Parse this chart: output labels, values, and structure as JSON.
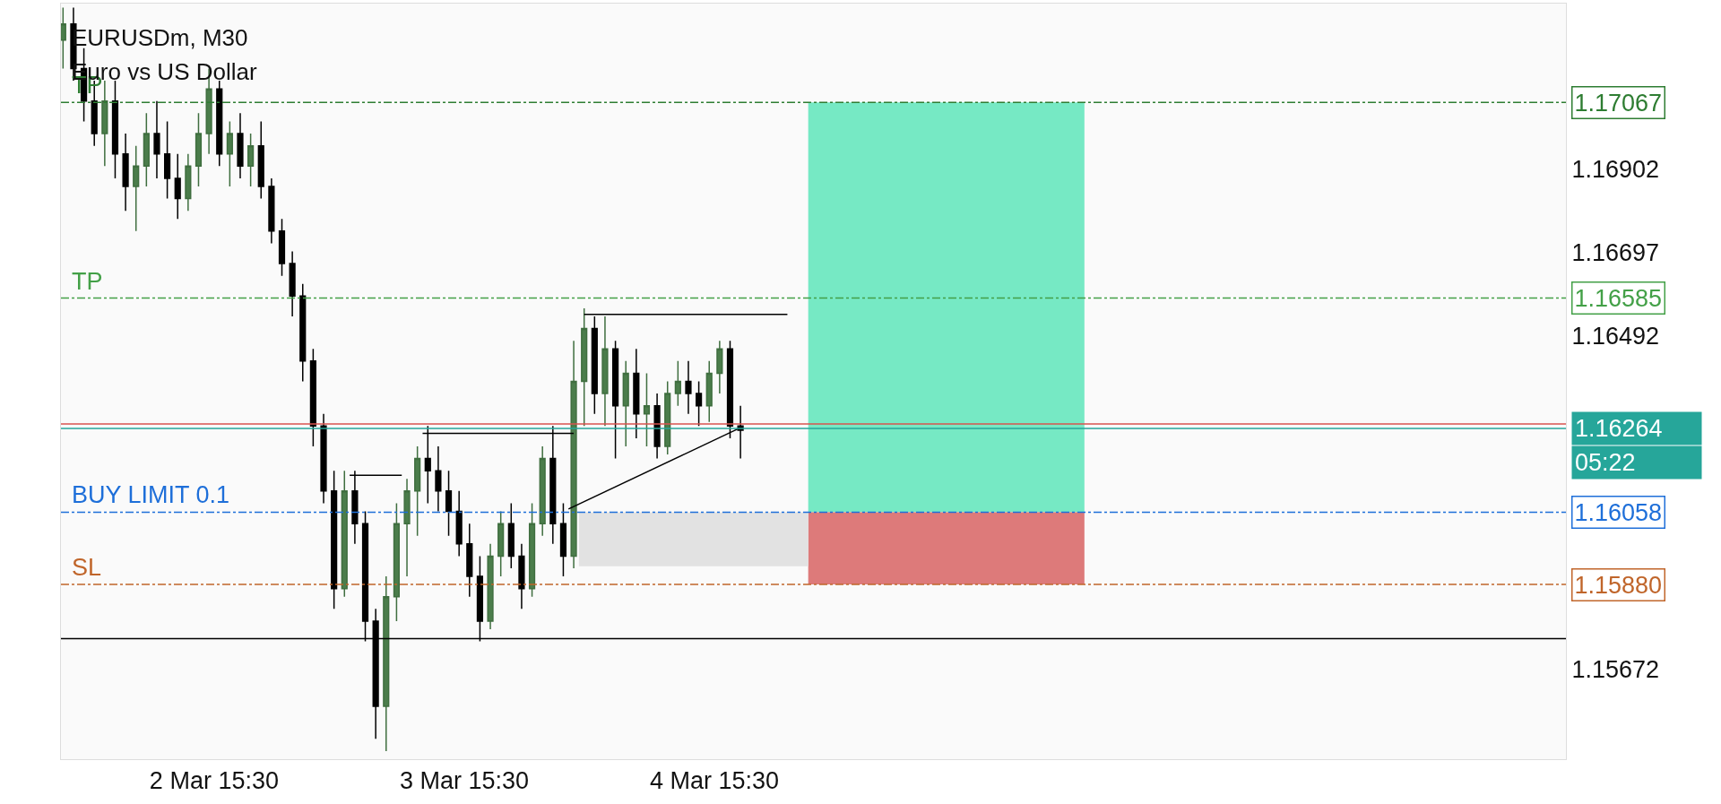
{
  "chart_data": {
    "type": "candlestick",
    "title": "EURUSDm, M30",
    "subtitle": "Euro vs US Dollar",
    "x": [
      "--03-02T01:00",
      "--03-02T02:00",
      "--03-02T03:00",
      "--03-02T04:00",
      "--03-02T05:00",
      "--03-02T06:00",
      "--03-02T07:00",
      "--03-02T08:00",
      "--03-02T09:00",
      "--03-02T10:00",
      "--03-02T11:00",
      "--03-02T12:00",
      "--03-02T13:00",
      "--03-02T14:00",
      "--03-02T15:00",
      "--03-02T16:00",
      "--03-02T17:00",
      "--03-02T18:00",
      "--03-02T19:00",
      "--03-02T20:00",
      "--03-02T21:00",
      "--03-02T22:00",
      "--03-02T23:00",
      "--03-03T00:00",
      "--03-03T01:00",
      "--03-03T02:00",
      "--03-03T03:00",
      "--03-03T04:00",
      "--03-03T05:00",
      "--03-03T06:00",
      "--03-03T07:00",
      "--03-03T08:00",
      "--03-03T09:00",
      "--03-03T10:00",
      "--03-03T11:00",
      "--03-03T12:00",
      "--03-03T13:00",
      "--03-03T14:00",
      "--03-03T15:00",
      "--03-03T16:00",
      "--03-03T17:00",
      "--03-03T18:00",
      "--03-03T19:00",
      "--03-03T20:00",
      "--03-03T21:00",
      "--03-03T22:00",
      "--03-03T23:00",
      "--03-04T00:00",
      "--03-04T01:00",
      "--03-04T02:00",
      "--03-04T03:00",
      "--03-04T04:00",
      "--03-04T05:00",
      "--03-04T06:00",
      "--03-04T07:00",
      "--03-04T08:00",
      "--03-04T09:00",
      "--03-04T10:00",
      "--03-04T11:00",
      "--03-04T12:00",
      "--03-04T13:00",
      "--03-04T14:00",
      "--03-04T15:00",
      "--03-04T16:00",
      "--03-04T17:00",
      "--03-04T18:00"
    ],
    "ohlc": [
      [
        1.1722,
        1.173,
        1.1715,
        1.1726
      ],
      [
        1.1726,
        1.173,
        1.1712,
        1.1715
      ],
      [
        1.1715,
        1.172,
        1.1702,
        1.1707
      ],
      [
        1.1707,
        1.1712,
        1.1696,
        1.1699
      ],
      [
        1.1699,
        1.1712,
        1.1691,
        1.1707
      ],
      [
        1.1707,
        1.1712,
        1.1688,
        1.1694
      ],
      [
        1.1694,
        1.1699,
        1.168,
        1.1686
      ],
      [
        1.1686,
        1.1696,
        1.1675,
        1.1691
      ],
      [
        1.1691,
        1.1704,
        1.1686,
        1.1699
      ],
      [
        1.1699,
        1.1707,
        1.1688,
        1.1694
      ],
      [
        1.1694,
        1.1702,
        1.1683,
        1.1688
      ],
      [
        1.1688,
        1.1694,
        1.1678,
        1.1683
      ],
      [
        1.1683,
        1.1694,
        1.168,
        1.1691
      ],
      [
        1.1691,
        1.1704,
        1.1686,
        1.1699
      ],
      [
        1.1699,
        1.1715,
        1.1694,
        1.171
      ],
      [
        1.171,
        1.1712,
        1.1691,
        1.1694
      ],
      [
        1.1694,
        1.1702,
        1.1686,
        1.1699
      ],
      [
        1.1699,
        1.1704,
        1.1688,
        1.1691
      ],
      [
        1.1691,
        1.1699,
        1.1686,
        1.1696
      ],
      [
        1.1696,
        1.1702,
        1.1683,
        1.1686
      ],
      [
        1.1686,
        1.1688,
        1.1672,
        1.1675
      ],
      [
        1.1675,
        1.1678,
        1.1664,
        1.1667
      ],
      [
        1.1667,
        1.167,
        1.1654,
        1.1659
      ],
      [
        1.1659,
        1.1662,
        1.1638,
        1.1643
      ],
      [
        1.1643,
        1.1646,
        1.1622,
        1.1627
      ],
      [
        1.1627,
        1.163,
        1.1608,
        1.1611
      ],
      [
        1.1611,
        1.1616,
        1.1582,
        1.1587
      ],
      [
        1.1587,
        1.1616,
        1.1585,
        1.1611
      ],
      [
        1.1611,
        1.1616,
        1.1598,
        1.1603
      ],
      [
        1.1603,
        1.1606,
        1.1574,
        1.1579
      ],
      [
        1.1579,
        1.1582,
        1.155,
        1.1558
      ],
      [
        1.1558,
        1.159,
        1.1547,
        1.1585
      ],
      [
        1.1585,
        1.1608,
        1.1579,
        1.1603
      ],
      [
        1.1603,
        1.1614,
        1.159,
        1.1611
      ],
      [
        1.1611,
        1.1622,
        1.16,
        1.1619
      ],
      [
        1.1619,
        1.1627,
        1.1608,
        1.1616
      ],
      [
        1.1616,
        1.1622,
        1.1606,
        1.1611
      ],
      [
        1.1611,
        1.1616,
        1.16,
        1.1606
      ],
      [
        1.1606,
        1.1611,
        1.1595,
        1.1598
      ],
      [
        1.1598,
        1.1603,
        1.1585,
        1.159
      ],
      [
        1.159,
        1.1595,
        1.1574,
        1.1579
      ],
      [
        1.1579,
        1.1598,
        1.1577,
        1.1595
      ],
      [
        1.1595,
        1.1606,
        1.159,
        1.1603
      ],
      [
        1.1603,
        1.1608,
        1.1592,
        1.1595
      ],
      [
        1.1595,
        1.1598,
        1.1582,
        1.1587
      ],
      [
        1.1587,
        1.1608,
        1.1585,
        1.1603
      ],
      [
        1.1603,
        1.1622,
        1.16,
        1.1619
      ],
      [
        1.1619,
        1.1627,
        1.1598,
        1.1603
      ],
      [
        1.1603,
        1.1608,
        1.159,
        1.1595
      ],
      [
        1.1595,
        1.1648,
        1.1592,
        1.1638
      ],
      [
        1.1638,
        1.1656,
        1.1627,
        1.1651
      ],
      [
        1.1651,
        1.1654,
        1.163,
        1.1635
      ],
      [
        1.1635,
        1.1654,
        1.1627,
        1.1646
      ],
      [
        1.1646,
        1.1648,
        1.1619,
        1.1632
      ],
      [
        1.1632,
        1.1643,
        1.1622,
        1.164
      ],
      [
        1.164,
        1.1646,
        1.1624,
        1.163
      ],
      [
        1.163,
        1.164,
        1.1622,
        1.1632
      ],
      [
        1.1632,
        1.1635,
        1.1619,
        1.1622
      ],
      [
        1.1622,
        1.1638,
        1.162,
        1.1635
      ],
      [
        1.1635,
        1.1643,
        1.1632,
        1.1638
      ],
      [
        1.1638,
        1.1643,
        1.163,
        1.1635
      ],
      [
        1.1635,
        1.1638,
        1.1627,
        1.1632
      ],
      [
        1.1632,
        1.1643,
        1.1628,
        1.164
      ],
      [
        1.164,
        1.1648,
        1.1635,
        1.1646
      ],
      [
        1.1646,
        1.1648,
        1.1624,
        1.1627
      ],
      [
        1.1627,
        1.1632,
        1.1619,
        1.1626
      ]
    ],
    "series": [
      {
        "type": "line",
        "color": "#76e9c4",
        "x": [
          "--03-05T00:30",
          "--03-06T03:00"
        ],
        "values": [
          null,
          null
        ],
        "upper": [
          1.17067,
          1.17067
        ],
        "lower": [
          1.16058,
          1.16058
        ]
      },
      {
        "type": "line",
        "color": "#dd7a7a",
        "x": [
          "--03-05T00:30",
          "--03-06T03:00"
        ],
        "values": [
          null,
          null
        ],
        "upper": [
          1.16058,
          1.16058
        ],
        "lower": [
          1.1588,
          1.1588
        ]
      },
      {
        "type": "line",
        "color": "#e2e2e2",
        "x": [
          "--03-04T02:30",
          "--03-05T00:30"
        ],
        "values": [
          null,
          null
        ],
        "upper": [
          1.16058,
          1.16058
        ],
        "lower": [
          1.15925,
          1.15925
        ]
      },
      {
        "type": "line",
        "color": "#000000",
        "x": [
          "--03-04T03:00",
          "--03-04T22:30"
        ],
        "values": [
          1.16545,
          1.16545
        ]
      },
      {
        "type": "line",
        "color": "#000000",
        "x": [
          "--03-03T11:30",
          "--03-04T02:00"
        ],
        "values": [
          1.16252,
          1.16252
        ]
      },
      {
        "type": "line",
        "color": "#000000",
        "x": [
          "--03-03T04:30",
          "--03-03T09:30"
        ],
        "values": [
          1.16149,
          1.16149
        ]
      },
      {
        "type": "line",
        "color": "#000000",
        "x": [
          "--03-04T01:30",
          "--03-04T18:00"
        ],
        "values": [
          1.16066,
          1.16266
        ]
      }
    ],
    "ref_lines": [
      {
        "axis": "y",
        "value": 1.17067,
        "label": "TP",
        "color": "#2e7d32",
        "line_style": "dashed"
      },
      {
        "axis": "y",
        "value": 1.16585,
        "label": "TP",
        "color": "#43a047",
        "line_style": "dashed"
      },
      {
        "axis": "y",
        "value": 1.16058,
        "label": "BUY LIMIT 0.1",
        "color": "#1e6fd9",
        "line_style": "dashed"
      },
      {
        "axis": "y",
        "value": 1.1588,
        "label": "SL",
        "color": "#c0652a",
        "line_style": "dashed"
      },
      {
        "axis": "y",
        "value": 1.16275,
        "color": "#d9534f",
        "line_style": "solid"
      },
      {
        "axis": "y",
        "value": 1.16264,
        "color": "#26a69a",
        "line_style": "solid"
      },
      {
        "axis": "y",
        "value": 1.15747,
        "color": "#000000",
        "line_style": "solid"
      }
    ],
    "annotations": [
      "05:22"
    ],
    "xlim": [
      "--03-02T00:48",
      "--03-08T01:12"
    ],
    "xticks": [
      {
        "value": "--03-02T15:30",
        "label": "2 Mar 15:30"
      },
      {
        "value": "--03-03T15:30",
        "label": "3 Mar 15:30"
      },
      {
        "value": "--03-04T15:30",
        "label": "4 Mar 15:30"
      }
    ],
    "ylim": [
      1.1545,
      1.1731
    ],
    "yticks": [
      1.17067,
      1.16902,
      1.16697,
      1.16585,
      1.16492,
      1.16264,
      {
        "value": 1.16058,
        "label": "1.16058"
      },
      {
        "value": 1.1588,
        "label": "1.15880"
      },
      1.15672
    ]
  }
}
